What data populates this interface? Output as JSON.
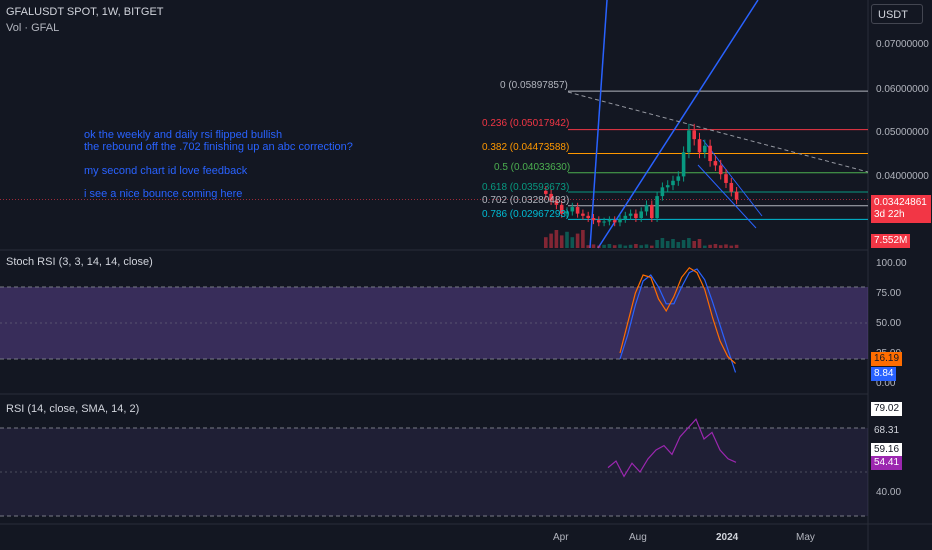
{
  "header": {
    "symbol": "GFALUSDT SPOT, 1W, BITGET",
    "volume_label": "Vol · GFAL",
    "currency_button": "USDT"
  },
  "notes": [
    "ok the weekly and daily rsi flipped bullish",
    "the rebound off the .702 finishing up an abc correction?",
    "my second chart id love feedback",
    "i see a nice bounce coming here"
  ],
  "fib_levels": [
    {
      "label": "0 (0.05897857)",
      "price": 0.05897857,
      "color": "#b2b5be"
    },
    {
      "label": "0.236 (0.05017942)",
      "price": 0.05017942,
      "color": "#f23645"
    },
    {
      "label": "0.382 (0.04473588)",
      "price": 0.04473588,
      "color": "#ff9800"
    },
    {
      "label": "0.5 (0.04033630)",
      "price": 0.0403363,
      "color": "#4caf50"
    },
    {
      "label": "0.618 (0.03593673)",
      "price": 0.03593673,
      "color": "#089981"
    },
    {
      "label": "0.702 (0.03280483)",
      "price": 0.03280483,
      "color": "#b2b5be"
    },
    {
      "label": "0.786 (0.02967293)",
      "price": 0.02967293,
      "color": "#00bcd4"
    }
  ],
  "price_axis": [
    "0.07000000",
    "0.06000000",
    "0.05000000",
    "0.04000000",
    "0.03000000"
  ],
  "last_price": {
    "value": "0.03424861",
    "countdown": "3d 22h",
    "color": "#f23645"
  },
  "volume_tag": {
    "value": "7.552M",
    "color": "#f23645"
  },
  "stoch": {
    "title": "Stoch RSI (3, 3, 14, 14, close)",
    "axis": [
      "100.00",
      "75.00",
      "50.00",
      "25.00",
      "0.00"
    ],
    "k_value": "16.19",
    "d_value": "8.84",
    "k_color": "#ff6d00",
    "d_color": "#2962ff",
    "upper_band": 80,
    "lower_band": 20
  },
  "rsi": {
    "title": "RSI (14, close, SMA, 14, 2)",
    "axis": [
      "40.00"
    ],
    "upper_tag": "79.02",
    "mid_tag": "68.31",
    "sma_tag": "59.16",
    "rsi_value": "54.41",
    "rsi_color": "#9c27b0",
    "upper_band": 70,
    "lower_band": 30
  },
  "time_axis": [
    "Apr",
    "Aug",
    "2024",
    "May"
  ],
  "chart_data": {
    "type": "candlestick",
    "candles_close": [
      0.0355,
      0.034,
      0.033,
      0.031,
      0.0315,
      0.0325,
      0.031,
      0.0305,
      0.03,
      0.0295,
      0.029,
      0.0292,
      0.0295,
      0.029,
      0.0298,
      0.0305,
      0.031,
      0.03,
      0.0315,
      0.033,
      0.03,
      0.035,
      0.037,
      0.0375,
      0.0385,
      0.0395,
      0.045,
      0.05,
      0.048,
      0.045,
      0.0465,
      0.043,
      0.042,
      0.04,
      0.038,
      0.036,
      0.0342
    ],
    "stoch_k": [
      25,
      50,
      75,
      90,
      88,
      70,
      60,
      72,
      88,
      96,
      92,
      78,
      55,
      35,
      22,
      16.19
    ],
    "stoch_d": [
      20,
      40,
      65,
      85,
      90,
      80,
      66,
      66,
      80,
      92,
      95,
      86,
      68,
      48,
      28,
      8.84
    ],
    "rsi_values": [
      52,
      55,
      48,
      54,
      50,
      56,
      60,
      62,
      58,
      66,
      70,
      74,
      65,
      68,
      60,
      56,
      54.41
    ]
  }
}
